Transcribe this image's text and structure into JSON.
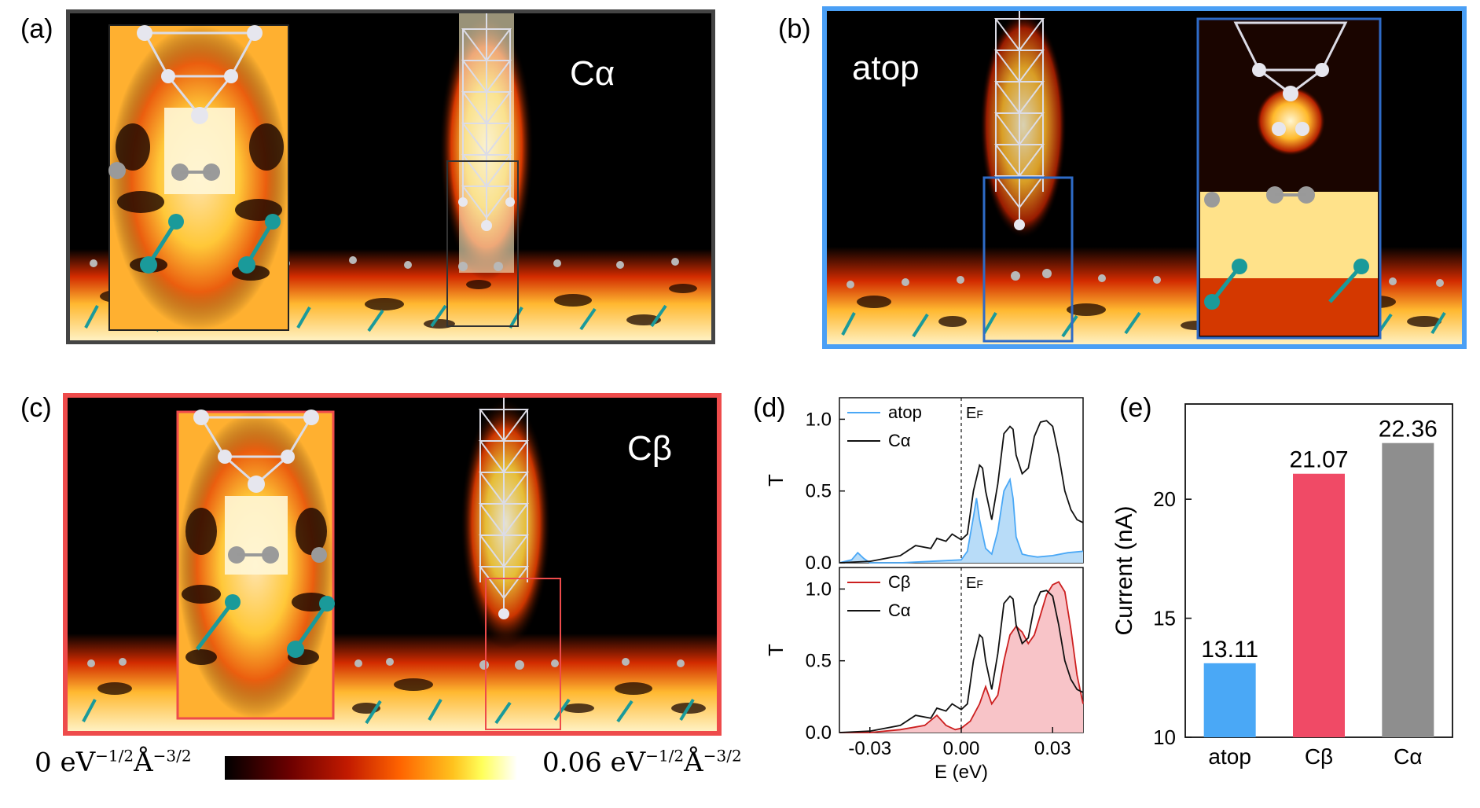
{
  "panels": {
    "a": {
      "label": "(a)",
      "tag": "Cα"
    },
    "b": {
      "label": "(b)",
      "tag": "atop"
    },
    "c": {
      "label": "(c)",
      "tag": "Cβ"
    },
    "d": {
      "label": "(d)"
    },
    "e": {
      "label": "(e)"
    }
  },
  "colorbar": {
    "min_value": "0",
    "max_value": "0.06",
    "unit_text": "eV",
    "unit_exp1": "−1/2",
    "unit_angstrom": "Å",
    "unit_exp2": "−3/2"
  },
  "colors": {
    "frame_a": "#444444",
    "frame_b": "#4a9ff5",
    "frame_c": "#ee4b4b",
    "inset_b": "#2e6bc7",
    "atop": "#4aa8f6",
    "cbeta": "#f04a66",
    "calpha": "#8e8e8e",
    "c_line": "#cc1f1f"
  },
  "chart_data": [
    {
      "type": "line",
      "title": "",
      "xlabel": "E (eV)",
      "ylabel": "T",
      "xlim": [
        -0.04,
        0.04
      ],
      "ylim": [
        0,
        1.15
      ],
      "yticks": [
        "0.0",
        "0.5",
        "1.0"
      ],
      "fermi_label": "EF",
      "legend_position": "top-left",
      "series": [
        {
          "name": "atop",
          "filled": true,
          "x": [
            -0.04,
            -0.036,
            -0.034,
            -0.032,
            -0.03,
            -0.02,
            -0.01,
            0.0,
            0.002,
            0.004,
            0.005,
            0.006,
            0.008,
            0.01,
            0.012,
            0.014,
            0.016,
            0.017,
            0.018,
            0.02,
            0.022,
            0.025,
            0.03,
            0.035,
            0.04
          ],
          "y": [
            0.0,
            0.02,
            0.07,
            0.03,
            0.0,
            0.0,
            0.01,
            0.02,
            0.08,
            0.32,
            0.45,
            0.3,
            0.1,
            0.06,
            0.22,
            0.5,
            0.58,
            0.45,
            0.18,
            0.06,
            0.05,
            0.04,
            0.05,
            0.07,
            0.08
          ]
        },
        {
          "name": "Cα",
          "filled": false,
          "x": [
            -0.04,
            -0.03,
            -0.02,
            -0.015,
            -0.01,
            -0.008,
            -0.005,
            -0.003,
            0.0,
            0.002,
            0.004,
            0.006,
            0.007,
            0.008,
            0.01,
            0.012,
            0.014,
            0.016,
            0.017,
            0.018,
            0.02,
            0.022,
            0.024,
            0.026,
            0.028,
            0.03,
            0.032,
            0.034,
            0.036,
            0.038,
            0.04
          ],
          "y": [
            0.0,
            0.01,
            0.05,
            0.12,
            0.1,
            0.17,
            0.15,
            0.2,
            0.16,
            0.2,
            0.5,
            0.68,
            0.66,
            0.5,
            0.3,
            0.55,
            0.9,
            0.95,
            0.93,
            0.75,
            0.62,
            0.66,
            0.88,
            0.98,
            0.99,
            0.95,
            0.75,
            0.5,
            0.37,
            0.3,
            0.28
          ]
        }
      ]
    },
    {
      "type": "line",
      "title": "",
      "xlabel": "E (eV)",
      "ylabel": "T",
      "xlim": [
        -0.04,
        0.04
      ],
      "ylim": [
        0,
        1.15
      ],
      "xticks": [
        "-0.03",
        "0.00",
        "0.03"
      ],
      "yticks": [
        "0.0",
        "0.5",
        "1.0"
      ],
      "fermi_label": "EF",
      "legend_position": "top-left",
      "series": [
        {
          "name": "Cβ",
          "filled": true,
          "x": [
            -0.04,
            -0.03,
            -0.02,
            -0.012,
            -0.008,
            -0.005,
            -0.002,
            0.0,
            0.003,
            0.006,
            0.008,
            0.01,
            0.012,
            0.014,
            0.016,
            0.018,
            0.02,
            0.022,
            0.024,
            0.026,
            0.028,
            0.03,
            0.032,
            0.034,
            0.036,
            0.038,
            0.04
          ],
          "y": [
            0.0,
            0.0,
            0.02,
            0.05,
            0.12,
            0.05,
            0.02,
            0.03,
            0.08,
            0.2,
            0.32,
            0.2,
            0.26,
            0.5,
            0.68,
            0.74,
            0.7,
            0.62,
            0.68,
            0.82,
            0.96,
            1.03,
            1.05,
            0.98,
            0.72,
            0.4,
            0.2
          ]
        },
        {
          "name": "Cα",
          "filled": false,
          "x": [
            -0.04,
            -0.03,
            -0.02,
            -0.015,
            -0.01,
            -0.008,
            -0.005,
            -0.003,
            0.0,
            0.002,
            0.004,
            0.006,
            0.007,
            0.008,
            0.01,
            0.012,
            0.014,
            0.016,
            0.017,
            0.018,
            0.02,
            0.022,
            0.024,
            0.026,
            0.028,
            0.03,
            0.032,
            0.034,
            0.036,
            0.038,
            0.04
          ],
          "y": [
            0.0,
            0.01,
            0.05,
            0.12,
            0.1,
            0.17,
            0.15,
            0.2,
            0.16,
            0.2,
            0.5,
            0.68,
            0.66,
            0.5,
            0.3,
            0.55,
            0.9,
            0.95,
            0.93,
            0.75,
            0.62,
            0.66,
            0.88,
            0.98,
            0.99,
            0.95,
            0.75,
            0.5,
            0.37,
            0.3,
            0.28
          ]
        }
      ]
    },
    {
      "type": "bar",
      "title": "",
      "xlabel": "",
      "ylabel": "Current (nA)",
      "ylim": [
        10,
        24
      ],
      "yticks": [
        "10",
        "15",
        "20"
      ],
      "categories": [
        "atop",
        "Cβ",
        "Cα"
      ],
      "values": [
        13.11,
        21.07,
        22.36
      ],
      "value_labels": [
        "13.11",
        "21.07",
        "22.36"
      ]
    }
  ]
}
